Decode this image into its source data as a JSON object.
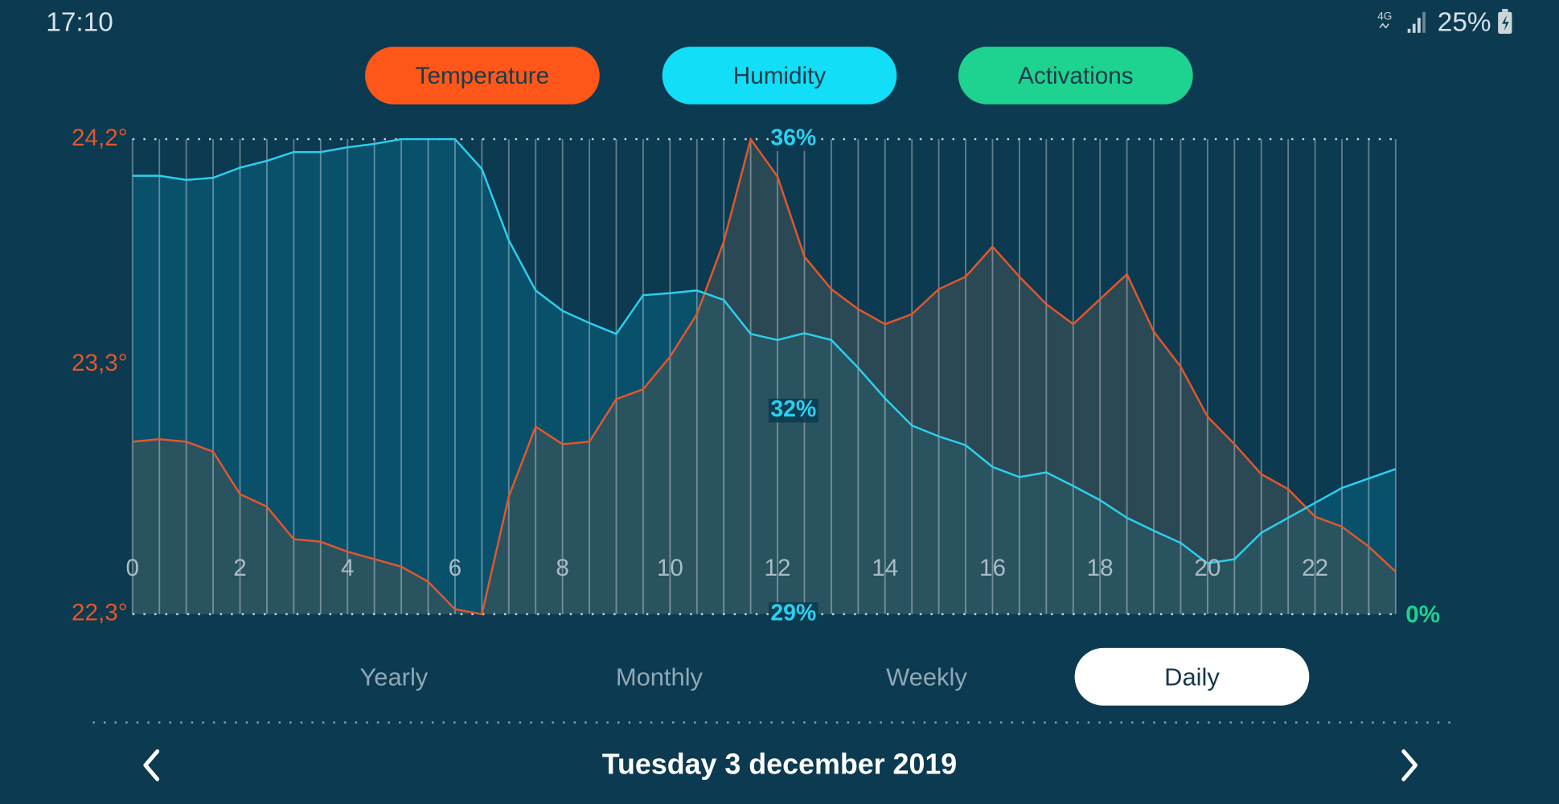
{
  "status_bar": {
    "time": "17:10",
    "network": "4G",
    "battery": "25%"
  },
  "chart_data": {
    "type": "line",
    "x": [
      0,
      0.5,
      1,
      1.5,
      2,
      2.5,
      3,
      3.5,
      4,
      4.5,
      5,
      5.5,
      6,
      6.5,
      7,
      7.5,
      8,
      8.5,
      9,
      9.5,
      10,
      10.5,
      11,
      11.5,
      12,
      12.5,
      13,
      13.5,
      14,
      14.5,
      15,
      15.5,
      16,
      16.5,
      17,
      17.5,
      18,
      18.5,
      19,
      19.5,
      20,
      20.5,
      21,
      21.5,
      22,
      22.5,
      23,
      23.5
    ],
    "xlim": [
      0,
      23.5
    ],
    "xticks": [
      0,
      2,
      4,
      6,
      8,
      10,
      12,
      14,
      16,
      18,
      20,
      22
    ],
    "ylim": [
      22.3,
      24.2
    ],
    "yticks": [
      {
        "value": 22.3,
        "label": "22,3°"
      },
      {
        "value": 23.3,
        "label": "23,3°"
      },
      {
        "value": 24.2,
        "label": "24,2°"
      }
    ],
    "y2lim": [
      29,
      36
    ],
    "y2ticks": [
      {
        "value": 29,
        "label": "29%"
      },
      {
        "value": 32,
        "label": "32%"
      },
      {
        "value": 36,
        "label": "36%"
      }
    ],
    "y3lim": [
      0,
      100
    ],
    "y3ticks": [
      {
        "value": 0,
        "label": "0%"
      }
    ],
    "grid": true,
    "series": [
      {
        "name": "Temperature",
        "color": "#ff5719",
        "line_color": "#e2572c",
        "values": [
          22.99,
          23.0,
          22.99,
          22.95,
          22.78,
          22.73,
          22.6,
          22.59,
          22.55,
          22.52,
          22.49,
          22.43,
          22.32,
          22.3,
          22.77,
          23.05,
          22.98,
          22.99,
          23.16,
          23.2,
          23.33,
          23.5,
          23.79,
          24.2,
          24.05,
          23.73,
          23.6,
          23.52,
          23.46,
          23.5,
          23.6,
          23.65,
          23.77,
          23.65,
          23.54,
          23.46,
          23.56,
          23.66,
          23.43,
          23.29,
          23.09,
          22.98,
          22.86,
          22.8,
          22.69,
          22.65,
          22.57,
          22.47
        ]
      },
      {
        "name": "Humidity",
        "color": "#12def8",
        "line_color": "#2bd0ee",
        "axis": "y2",
        "values": [
          35.46,
          35.46,
          35.4,
          35.43,
          35.58,
          35.68,
          35.81,
          35.81,
          35.88,
          35.93,
          36.0,
          36.0,
          36.0,
          35.56,
          34.51,
          33.77,
          33.47,
          33.29,
          33.13,
          33.7,
          33.73,
          33.77,
          33.63,
          33.13,
          33.04,
          33.14,
          33.04,
          32.63,
          32.18,
          31.78,
          31.62,
          31.49,
          31.17,
          31.02,
          31.09,
          30.89,
          30.68,
          30.42,
          30.23,
          30.05,
          29.75,
          29.81,
          30.2,
          30.42,
          30.64,
          30.86,
          31.0,
          31.14
        ]
      },
      {
        "name": "Activations",
        "color": "#1dd38f",
        "line_color": "#1dd38f",
        "axis": "y3",
        "values": [
          null,
          null,
          null,
          null,
          null,
          null,
          null,
          null,
          null,
          null,
          null,
          null,
          null,
          null,
          null,
          null,
          null,
          null,
          null,
          null,
          null,
          null,
          null,
          null,
          null,
          null,
          null,
          null,
          null,
          null,
          null,
          null,
          null,
          null,
          null,
          null,
          null,
          null,
          null,
          null,
          null,
          null,
          null,
          null,
          null,
          null,
          null,
          null
        ]
      }
    ]
  },
  "periods": {
    "options": [
      "Yearly",
      "Monthly",
      "Weekly",
      "Daily"
    ],
    "selected": 3
  },
  "date": "Tuesday 3 december 2019"
}
